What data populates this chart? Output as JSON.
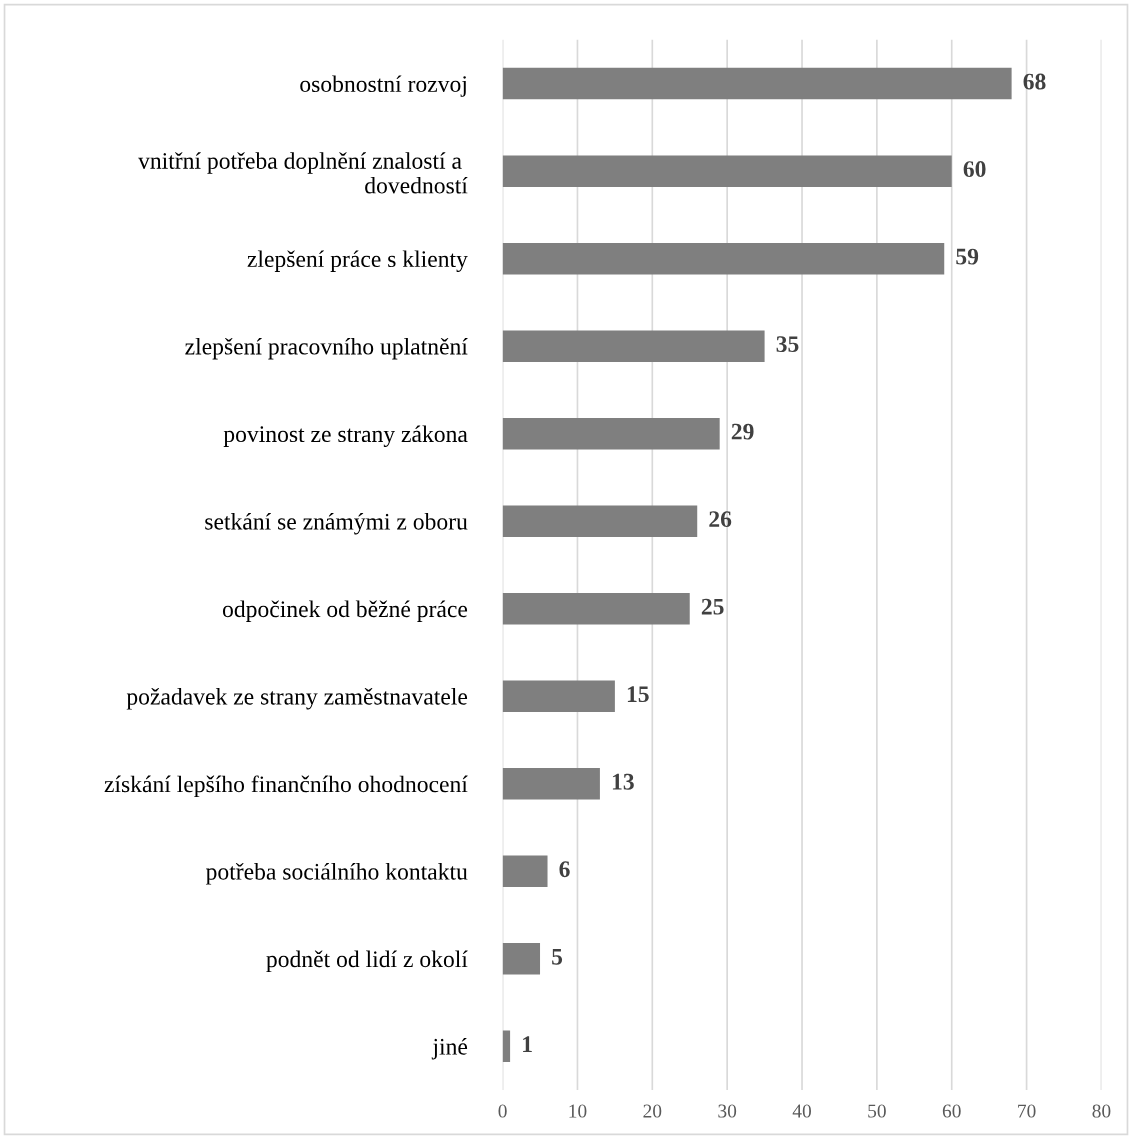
{
  "chart_data": {
    "type": "bar",
    "orientation": "horizontal",
    "categories": [
      "osobnostní rozvoj",
      "vnitřní potřeba doplnění znalostí a \ndovedností",
      "zlepšení práce s klienty",
      "zlepšení pracovního uplatnění",
      "povinost ze strany zákona",
      "setkání se známými z oboru",
      "odpočinek od běžné práce",
      "požadavek ze strany zaměstnavatele",
      "získání lepšího finančního ohodnocení",
      "potřeba sociálního kontaktu",
      "podnět od lidí z okolí",
      "jiné"
    ],
    "values": [
      68,
      60,
      59,
      35,
      29,
      26,
      25,
      15,
      13,
      6,
      5,
      1
    ],
    "color": "#7f7f7f",
    "xlim": [
      0,
      80
    ],
    "xticks": [
      0,
      10,
      20,
      30,
      40,
      50,
      60,
      70,
      80
    ],
    "grid": "x",
    "data_labels": true
  }
}
